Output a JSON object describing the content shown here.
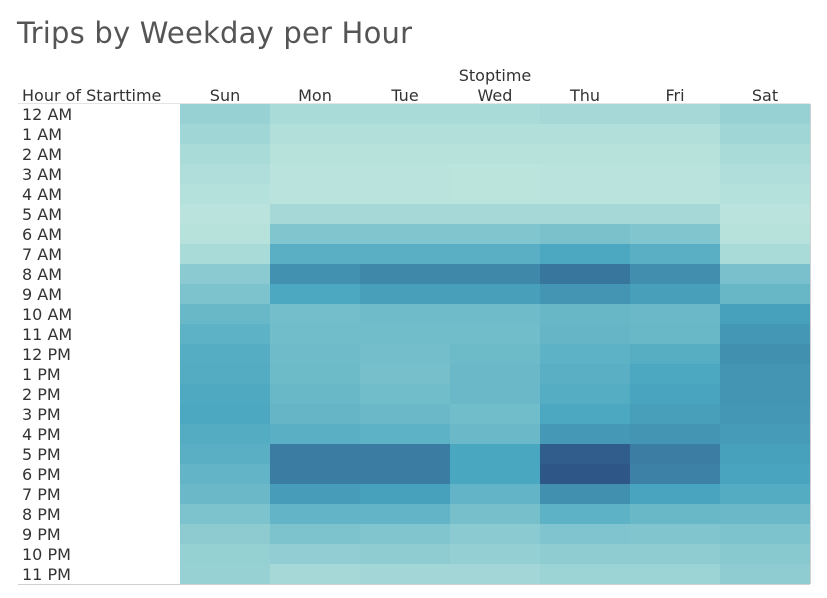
{
  "title": "Trips by Weekday per Hour",
  "chart_data": {
    "type": "heatmap",
    "title": "Trips by Weekday per Hour",
    "column_field_label": "Stoptime",
    "row_field_label": "Hour of Starttime",
    "columns": [
      "Sun",
      "Mon",
      "Tue",
      "Wed",
      "Thu",
      "Fri",
      "Sat"
    ],
    "rows": [
      "12 AM",
      "1 AM",
      "2 AM",
      "3 AM",
      "4 AM",
      "5 AM",
      "6 AM",
      "7 AM",
      "8 AM",
      "9 AM",
      "10 AM",
      "11 AM",
      "12 PM",
      "1 PM",
      "2 PM",
      "3 PM",
      "4 PM",
      "5 PM",
      "6 PM",
      "7 PM",
      "8 PM",
      "9 PM",
      "10 PM",
      "11 PM"
    ],
    "intensity_scale": [
      0,
      1
    ],
    "color_low": "#c4e9df",
    "color_mid": "#4aa7c0",
    "color_high": "#2b4f82",
    "values": [
      [
        0.2,
        0.12,
        0.12,
        0.12,
        0.14,
        0.14,
        0.2
      ],
      [
        0.16,
        0.08,
        0.08,
        0.08,
        0.08,
        0.08,
        0.16
      ],
      [
        0.12,
        0.06,
        0.06,
        0.06,
        0.06,
        0.06,
        0.12
      ],
      [
        0.09,
        0.05,
        0.05,
        0.04,
        0.05,
        0.05,
        0.09
      ],
      [
        0.07,
        0.05,
        0.05,
        0.04,
        0.05,
        0.05,
        0.07
      ],
      [
        0.05,
        0.14,
        0.14,
        0.14,
        0.14,
        0.14,
        0.05
      ],
      [
        0.06,
        0.3,
        0.3,
        0.3,
        0.33,
        0.3,
        0.06
      ],
      [
        0.12,
        0.48,
        0.48,
        0.48,
        0.54,
        0.48,
        0.12
      ],
      [
        0.26,
        0.66,
        0.71,
        0.71,
        0.8,
        0.68,
        0.34
      ],
      [
        0.32,
        0.54,
        0.59,
        0.59,
        0.64,
        0.59,
        0.42
      ],
      [
        0.41,
        0.36,
        0.38,
        0.38,
        0.42,
        0.4,
        0.58
      ],
      [
        0.46,
        0.37,
        0.37,
        0.37,
        0.43,
        0.41,
        0.63
      ],
      [
        0.5,
        0.38,
        0.36,
        0.39,
        0.46,
        0.49,
        0.67
      ],
      [
        0.51,
        0.39,
        0.35,
        0.4,
        0.48,
        0.54,
        0.64
      ],
      [
        0.53,
        0.41,
        0.37,
        0.4,
        0.5,
        0.56,
        0.64
      ],
      [
        0.54,
        0.43,
        0.4,
        0.37,
        0.54,
        0.59,
        0.63
      ],
      [
        0.51,
        0.48,
        0.46,
        0.4,
        0.62,
        0.64,
        0.61
      ],
      [
        0.48,
        0.77,
        0.77,
        0.55,
        0.93,
        0.76,
        0.58
      ],
      [
        0.44,
        0.77,
        0.77,
        0.55,
        0.96,
        0.74,
        0.56
      ],
      [
        0.4,
        0.6,
        0.58,
        0.44,
        0.67,
        0.56,
        0.51
      ],
      [
        0.32,
        0.44,
        0.44,
        0.35,
        0.46,
        0.41,
        0.4
      ],
      [
        0.25,
        0.32,
        0.3,
        0.26,
        0.31,
        0.3,
        0.32
      ],
      [
        0.21,
        0.23,
        0.24,
        0.22,
        0.24,
        0.24,
        0.27
      ],
      [
        0.2,
        0.14,
        0.15,
        0.15,
        0.18,
        0.18,
        0.24
      ]
    ]
  }
}
